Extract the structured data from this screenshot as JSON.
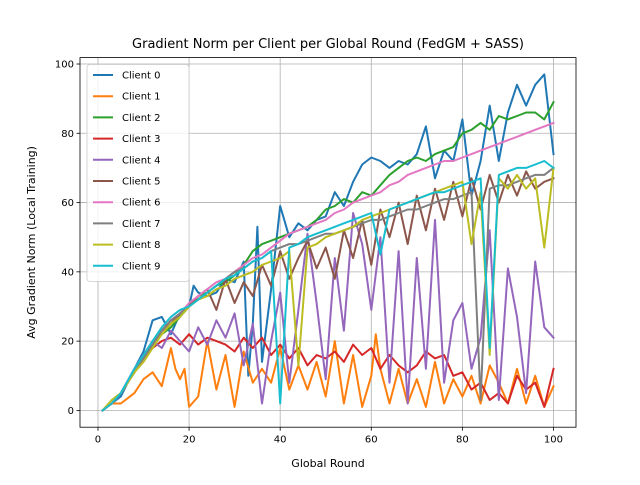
{
  "chart_data": {
    "type": "line",
    "title": "Gradient Norm per Client per Global Round (FedGM + SASS)",
    "xlabel": "Global Round",
    "ylabel": "Avg Gradient Norm (Local Training)",
    "xlim": [
      -3.95,
      104.95
    ],
    "ylim": [
      -4.85,
      101.85
    ],
    "xticks": [
      0,
      20,
      40,
      60,
      80,
      100
    ],
    "yticks": [
      0,
      20,
      40,
      60,
      80,
      100
    ],
    "grid": true,
    "legend_position": "upper-left",
    "series": [
      {
        "name": "Client 0",
        "color": "#1f77b4",
        "x": [
          1,
          3,
          5,
          8,
          10,
          12,
          14,
          16,
          18,
          20,
          21,
          22,
          24,
          26,
          28,
          30,
          32,
          33,
          34,
          35,
          36,
          38,
          40,
          42,
          44,
          46,
          48,
          50,
          52,
          54,
          56,
          58,
          60,
          62,
          64,
          66,
          68,
          70,
          72,
          74,
          76,
          78,
          80,
          82,
          84,
          86,
          88,
          90,
          92,
          94,
          96,
          98,
          100
        ],
        "values": [
          0,
          2,
          4,
          12,
          17,
          26,
          27,
          22,
          28,
          30,
          36,
          34,
          33,
          34,
          38,
          37,
          43,
          10,
          25,
          53,
          14,
          35,
          59,
          50,
          54,
          52,
          55,
          56,
          63,
          59,
          66,
          71,
          73,
          72,
          70,
          72,
          71,
          74,
          82,
          67,
          75,
          72,
          84,
          62,
          72,
          88,
          72,
          86,
          94,
          88,
          94,
          97,
          74
        ]
      },
      {
        "name": "Client 1",
        "color": "#ff7f0e",
        "x": [
          1,
          3,
          5,
          8,
          10,
          12,
          14,
          16,
          17,
          18,
          19,
          20,
          22,
          24,
          26,
          28,
          30,
          32,
          34,
          36,
          38,
          40,
          42,
          44,
          46,
          48,
          50,
          52,
          54,
          56,
          58,
          60,
          61,
          62,
          64,
          66,
          68,
          70,
          72,
          74,
          76,
          78,
          80,
          82,
          84,
          86,
          88,
          90,
          92,
          94,
          96,
          98,
          100
        ],
        "values": [
          0,
          2,
          2,
          5,
          9,
          11,
          7,
          18,
          12,
          9,
          12,
          1,
          4,
          20,
          6,
          16,
          1,
          17,
          8,
          12,
          8,
          18,
          6,
          13,
          6,
          14,
          4,
          20,
          2,
          16,
          1,
          10,
          22,
          12,
          2,
          12,
          2,
          9,
          1,
          14,
          2,
          9,
          4,
          10,
          2,
          13,
          8,
          2,
          12,
          2,
          10,
          1,
          7
        ]
      },
      {
        "name": "Client 2",
        "color": "#2ca02c",
        "x": [
          1,
          3,
          5,
          8,
          10,
          12,
          14,
          16,
          18,
          20,
          22,
          24,
          26,
          28,
          30,
          32,
          34,
          36,
          38,
          40,
          42,
          44,
          46,
          48,
          50,
          52,
          54,
          56,
          58,
          60,
          62,
          64,
          66,
          68,
          70,
          72,
          74,
          76,
          78,
          80,
          82,
          84,
          86,
          88,
          90,
          92,
          94,
          96,
          98,
          100
        ],
        "values": [
          0,
          2,
          5,
          11,
          15,
          19,
          22,
          24,
          27,
          30,
          33,
          34,
          36,
          37,
          39,
          42,
          46,
          48,
          49,
          50,
          51,
          52,
          53,
          55,
          58,
          59,
          61,
          60,
          63,
          62,
          65,
          68,
          70,
          72,
          73,
          72,
          74,
          75,
          76,
          80,
          81,
          83,
          81,
          85,
          84,
          85,
          86,
          86,
          84,
          89
        ]
      },
      {
        "name": "Client 3",
        "color": "#d62728",
        "x": [
          1,
          3,
          5,
          8,
          10,
          12,
          14,
          16,
          18,
          20,
          22,
          24,
          26,
          28,
          30,
          32,
          34,
          36,
          38,
          40,
          42,
          44,
          46,
          48,
          50,
          52,
          54,
          56,
          58,
          60,
          62,
          64,
          66,
          68,
          70,
          72,
          74,
          76,
          78,
          80,
          82,
          84,
          86,
          88,
          90,
          92,
          94,
          96,
          98,
          100
        ],
        "values": [
          0,
          2,
          5,
          11,
          15,
          18,
          20,
          21,
          19,
          22,
          19,
          21,
          20,
          19,
          17,
          21,
          18,
          21,
          16,
          19,
          15,
          18,
          13,
          16,
          15,
          17,
          14,
          19,
          16,
          18,
          12,
          16,
          13,
          11,
          13,
          17,
          15,
          16,
          10,
          11,
          6,
          8,
          3,
          5,
          2,
          10,
          6,
          8,
          1,
          12
        ]
      },
      {
        "name": "Client 4",
        "color": "#9467bd",
        "x": [
          1,
          3,
          5,
          8,
          10,
          12,
          14,
          16,
          18,
          20,
          22,
          24,
          26,
          28,
          30,
          32,
          34,
          36,
          38,
          40,
          42,
          44,
          46,
          48,
          50,
          52,
          54,
          56,
          58,
          60,
          62,
          64,
          66,
          68,
          70,
          72,
          74,
          76,
          78,
          80,
          82,
          84,
          86,
          88,
          90,
          92,
          94,
          96,
          98,
          100
        ],
        "values": [
          0,
          2,
          5,
          12,
          16,
          20,
          18,
          23,
          20,
          17,
          24,
          19,
          26,
          21,
          28,
          13,
          25,
          2,
          20,
          34,
          8,
          29,
          51,
          31,
          9,
          44,
          23,
          57,
          48,
          29,
          50,
          8,
          46,
          2,
          44,
          12,
          55,
          8,
          26,
          31,
          12,
          21,
          52,
          3,
          41,
          27,
          5,
          43,
          24,
          21
        ]
      },
      {
        "name": "Client 5",
        "color": "#8c564b",
        "x": [
          1,
          3,
          5,
          8,
          10,
          12,
          14,
          16,
          18,
          20,
          22,
          24,
          26,
          28,
          30,
          32,
          34,
          36,
          38,
          40,
          42,
          44,
          46,
          48,
          50,
          52,
          54,
          56,
          58,
          60,
          62,
          64,
          66,
          68,
          70,
          72,
          74,
          76,
          78,
          80,
          82,
          84,
          86,
          88,
          90,
          92,
          94,
          96,
          98,
          100
        ],
        "values": [
          0,
          2,
          5,
          11,
          15,
          19,
          23,
          25,
          28,
          30,
          33,
          35,
          29,
          38,
          31,
          37,
          33,
          42,
          36,
          46,
          38,
          44,
          49,
          41,
          47,
          38,
          52,
          44,
          55,
          42,
          58,
          50,
          60,
          48,
          62,
          52,
          64,
          55,
          66,
          56,
          67,
          58,
          68,
          60,
          68,
          62,
          69,
          64,
          66,
          67
        ]
      },
      {
        "name": "Client 6",
        "color": "#e377c2",
        "x": [
          1,
          3,
          5,
          8,
          10,
          12,
          14,
          16,
          18,
          20,
          22,
          24,
          26,
          28,
          30,
          32,
          34,
          36,
          38,
          40,
          42,
          44,
          46,
          48,
          50,
          52,
          54,
          56,
          58,
          60,
          62,
          64,
          66,
          68,
          70,
          72,
          74,
          76,
          78,
          80,
          82,
          84,
          86,
          88,
          90,
          92,
          94,
          96,
          98,
          100
        ],
        "values": [
          0,
          2,
          5,
          12,
          16,
          20,
          23,
          26,
          28,
          31,
          33,
          35,
          37,
          38,
          40,
          42,
          44,
          45,
          47,
          49,
          51,
          52,
          53,
          54,
          55,
          57,
          58,
          60,
          61,
          62,
          63,
          65,
          66,
          68,
          69,
          70,
          71,
          72,
          72,
          73,
          74,
          75,
          76,
          77,
          78,
          79,
          80,
          81,
          82,
          83
        ]
      },
      {
        "name": "Client 7",
        "color": "#7f7f7f",
        "x": [
          1,
          3,
          5,
          8,
          10,
          12,
          14,
          16,
          18,
          20,
          22,
          24,
          26,
          28,
          30,
          32,
          34,
          36,
          38,
          40,
          42,
          44,
          46,
          48,
          50,
          52,
          54,
          56,
          58,
          60,
          62,
          64,
          66,
          68,
          70,
          72,
          74,
          76,
          78,
          80,
          82,
          84,
          86,
          88,
          90,
          92,
          94,
          96,
          98,
          100
        ],
        "values": [
          0,
          2,
          5,
          11,
          15,
          19,
          23,
          26,
          28,
          30,
          32,
          34,
          36,
          38,
          40,
          41,
          43,
          44,
          46,
          47,
          48,
          48,
          49,
          50,
          51,
          51,
          52,
          53,
          54,
          55,
          55,
          56,
          57,
          58,
          58,
          59,
          60,
          61,
          61,
          62,
          63,
          3,
          64,
          65,
          65,
          66,
          67,
          68,
          68,
          70
        ]
      },
      {
        "name": "Client 8",
        "color": "#bcbd22",
        "x": [
          1,
          3,
          5,
          8,
          10,
          12,
          14,
          16,
          18,
          20,
          22,
          24,
          26,
          28,
          30,
          32,
          34,
          36,
          38,
          40,
          42,
          44,
          46,
          48,
          50,
          52,
          54,
          56,
          58,
          60,
          62,
          64,
          66,
          68,
          70,
          72,
          74,
          76,
          78,
          80,
          82,
          84,
          86,
          88,
          90,
          92,
          94,
          96,
          98,
          100
        ],
        "values": [
          0,
          3,
          5,
          11,
          14,
          18,
          22,
          25,
          27,
          30,
          32,
          33,
          35,
          36,
          38,
          39,
          40,
          42,
          43,
          44,
          46,
          13,
          47,
          48,
          50,
          51,
          52,
          53,
          55,
          56,
          57,
          58,
          59,
          60,
          61,
          62,
          63,
          64,
          65,
          66,
          48,
          63,
          16,
          67,
          64,
          68,
          64,
          67,
          47,
          70
        ]
      },
      {
        "name": "Client 9",
        "color": "#17becf",
        "x": [
          1,
          3,
          5,
          8,
          10,
          12,
          14,
          16,
          18,
          20,
          22,
          24,
          26,
          28,
          30,
          32,
          34,
          36,
          38,
          40,
          42,
          44,
          46,
          48,
          50,
          52,
          54,
          56,
          58,
          60,
          62,
          64,
          66,
          68,
          70,
          72,
          74,
          76,
          78,
          80,
          82,
          84,
          86,
          88,
          90,
          92,
          94,
          96,
          98,
          100
        ],
        "values": [
          0,
          2,
          5,
          12,
          16,
          20,
          24,
          27,
          29,
          30,
          32,
          34,
          36,
          38,
          39,
          41,
          43,
          44,
          46,
          2,
          47,
          48,
          50,
          51,
          52,
          53,
          54,
          55,
          56,
          57,
          45,
          58,
          59,
          60,
          61,
          62,
          63,
          63,
          64,
          65,
          66,
          67,
          18,
          68,
          69,
          70,
          70,
          71,
          72,
          70
        ]
      }
    ]
  }
}
